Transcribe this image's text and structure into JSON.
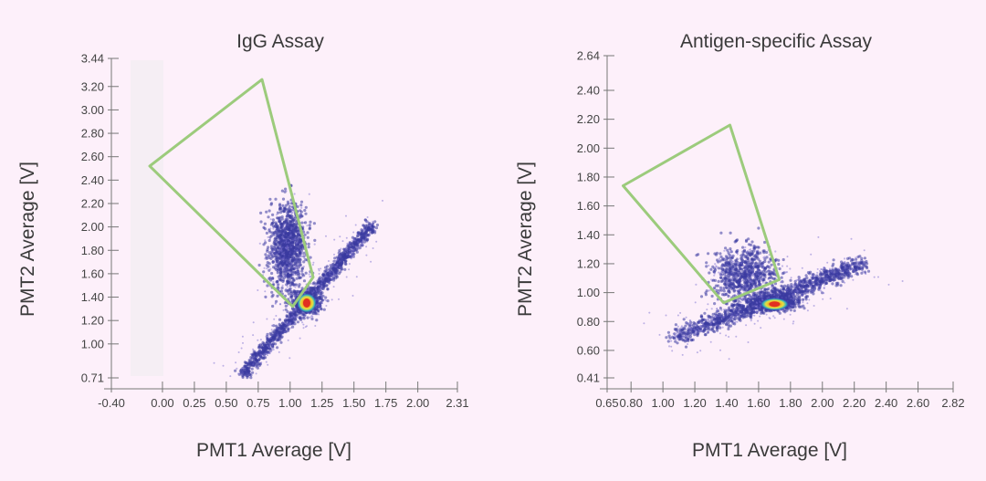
{
  "colors": {
    "background": "#fdf0fa",
    "gate": "#9ccb7c",
    "density_low": "#7b6fd0",
    "density_mid": "#3a3aa0",
    "density_high": "#e0c020",
    "density_peak": "#e23020"
  },
  "chart_data": [
    {
      "type": "scatter",
      "title": "IgG Assay",
      "xlabel": "PMT1 Average [V]",
      "ylabel": "PMT2 Average [V]",
      "xlim": [
        -0.4,
        2.31
      ],
      "ylim": [
        0.71,
        3.44
      ],
      "x_ticks": [
        {
          "v": -0.4,
          "label": "-0.40"
        },
        {
          "v": 0.0,
          "label": "0.00"
        },
        {
          "v": 0.25,
          "label": "0.25"
        },
        {
          "v": 0.5,
          "label": "0.50"
        },
        {
          "v": 0.75,
          "label": "0.75"
        },
        {
          "v": 1.0,
          "label": "1.00"
        },
        {
          "v": 1.25,
          "label": "1.25"
        },
        {
          "v": 1.5,
          "label": "1.50"
        },
        {
          "v": 1.75,
          "label": "1.75"
        },
        {
          "v": 2.0,
          "label": "2.00"
        },
        {
          "v": 2.31,
          "label": "2.31"
        }
      ],
      "y_ticks": [
        {
          "v": 0.71,
          "label": "0.71"
        },
        {
          "v": 1.0,
          "label": "1.00"
        },
        {
          "v": 1.2,
          "label": "1.20"
        },
        {
          "v": 1.4,
          "label": "1.40"
        },
        {
          "v": 1.6,
          "label": "1.60"
        },
        {
          "v": 1.8,
          "label": "1.80"
        },
        {
          "v": 2.0,
          "label": "2.00"
        },
        {
          "v": 2.2,
          "label": "2.20"
        },
        {
          "v": 2.4,
          "label": "2.40"
        },
        {
          "v": 2.6,
          "label": "2.60"
        },
        {
          "v": 2.8,
          "label": "2.80"
        },
        {
          "v": 3.0,
          "label": "3.00"
        },
        {
          "v": 3.2,
          "label": "3.20"
        },
        {
          "v": 3.44,
          "label": "3.44"
        }
      ],
      "gate_polygon": [
        [
          0.78,
          3.26
        ],
        [
          -0.1,
          2.52
        ],
        [
          1.02,
          1.32
        ],
        [
          1.18,
          1.57
        ]
      ],
      "clusters": [
        {
          "name": "diagonal",
          "start": [
            0.62,
            0.73
          ],
          "end": [
            1.65,
            2.02
          ],
          "count": 1400,
          "spread": 0.025
        },
        {
          "name": "upper-lobe",
          "center": [
            0.98,
            1.82
          ],
          "sx": 0.07,
          "sy": 0.18,
          "count": 1300
        },
        {
          "name": "core",
          "center": [
            1.13,
            1.36
          ],
          "sx": 0.05,
          "sy": 0.05,
          "count": 900
        }
      ],
      "peak": [
        1.13,
        1.35
      ]
    },
    {
      "type": "scatter",
      "title": "Antigen-specific Assay",
      "xlabel": "PMT1 Average [V]",
      "ylabel": "PMT2 Average [V]",
      "xlim": [
        0.65,
        2.82
      ],
      "ylim": [
        0.41,
        2.64
      ],
      "x_ticks": [
        {
          "v": 0.65,
          "label": "0.65"
        },
        {
          "v": 0.8,
          "label": "0.80"
        },
        {
          "v": 1.0,
          "label": "1.00"
        },
        {
          "v": 1.2,
          "label": "1.20"
        },
        {
          "v": 1.4,
          "label": "1.40"
        },
        {
          "v": 1.6,
          "label": "1.60"
        },
        {
          "v": 1.8,
          "label": "1.80"
        },
        {
          "v": 2.0,
          "label": "2.00"
        },
        {
          "v": 2.2,
          "label": "2.20"
        },
        {
          "v": 2.4,
          "label": "2.40"
        },
        {
          "v": 2.6,
          "label": "2.60"
        },
        {
          "v": 2.82,
          "label": "2.82"
        }
      ],
      "y_ticks": [
        {
          "v": 0.41,
          "label": "0.41"
        },
        {
          "v": 0.6,
          "label": "0.60"
        },
        {
          "v": 0.8,
          "label": "0.80"
        },
        {
          "v": 1.0,
          "label": "1.00"
        },
        {
          "v": 1.2,
          "label": "1.20"
        },
        {
          "v": 1.4,
          "label": "1.40"
        },
        {
          "v": 1.6,
          "label": "1.60"
        },
        {
          "v": 1.8,
          "label": "1.80"
        },
        {
          "v": 2.0,
          "label": "2.00"
        },
        {
          "v": 2.2,
          "label": "2.20"
        },
        {
          "v": 2.4,
          "label": "2.40"
        },
        {
          "v": 2.64,
          "label": "2.64"
        }
      ],
      "gate_polygon": [
        [
          1.42,
          2.16
        ],
        [
          0.75,
          1.74
        ],
        [
          1.38,
          0.93
        ],
        [
          1.73,
          1.09
        ]
      ],
      "clusters": [
        {
          "name": "diagonal",
          "start": [
            1.05,
            0.68
          ],
          "end": [
            2.25,
            1.2
          ],
          "count": 1500,
          "spread": 0.03
        },
        {
          "name": "upper-lobe",
          "center": [
            1.52,
            1.12
          ],
          "sx": 0.1,
          "sy": 0.1,
          "count": 900
        },
        {
          "name": "core",
          "center": [
            1.7,
            0.93
          ],
          "sx": 0.07,
          "sy": 0.025,
          "count": 900
        }
      ],
      "peak": [
        1.7,
        0.92
      ]
    }
  ]
}
